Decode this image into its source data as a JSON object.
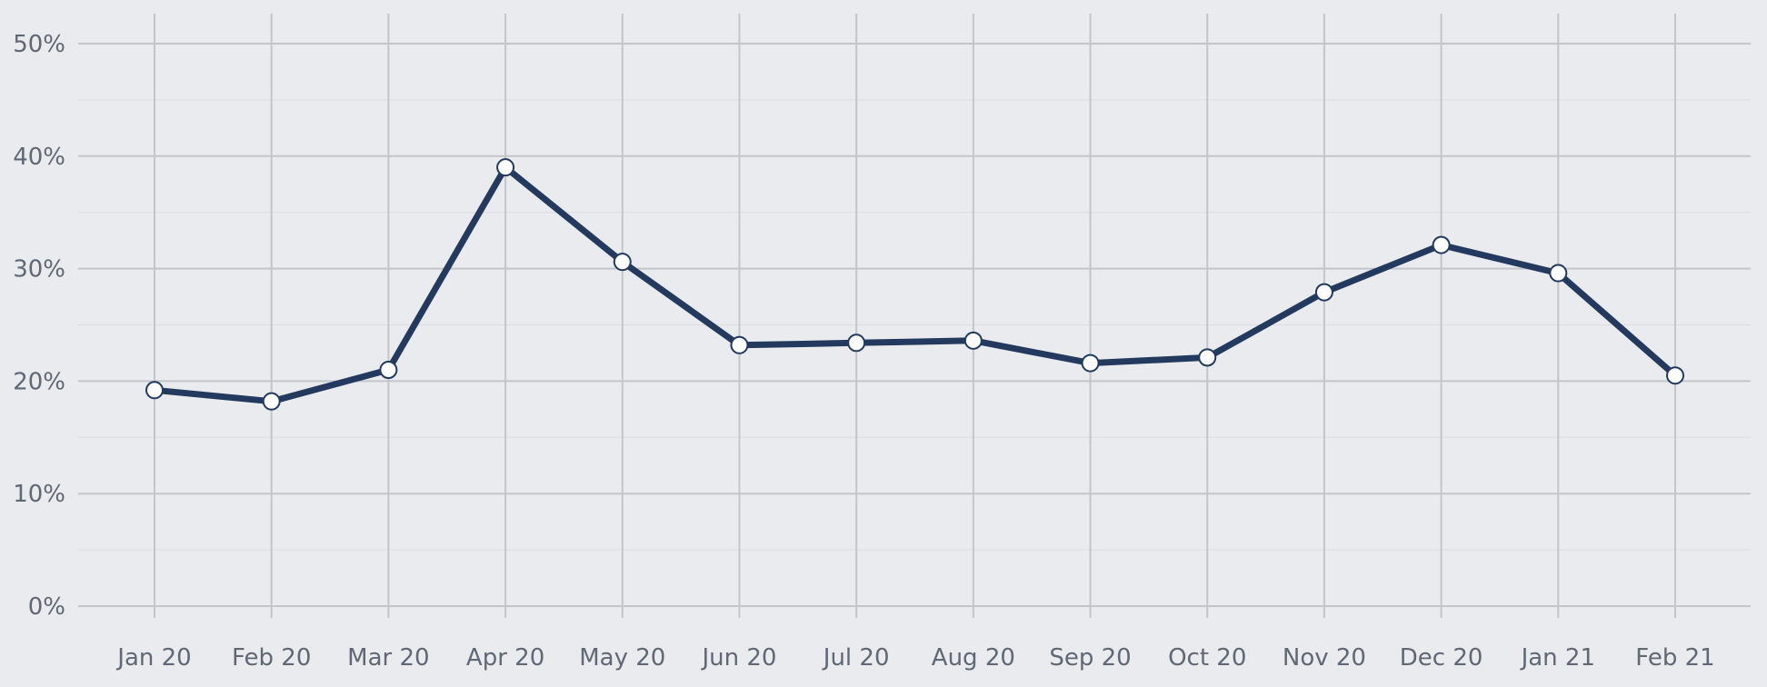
{
  "chart_data": {
    "type": "line",
    "title": "",
    "xlabel": "",
    "ylabel": "",
    "categories": [
      "Jan 20",
      "Feb 20",
      "Mar 20",
      "Apr 20",
      "May 20",
      "Jun 20",
      "Jul 20",
      "Aug 20",
      "Sep 20",
      "Oct 20",
      "Nov 20",
      "Dec 20",
      "Jan 21",
      "Feb 21"
    ],
    "series": [
      {
        "values": [
          19.2,
          18.2,
          21.0,
          39.0,
          30.6,
          23.2,
          23.4,
          23.6,
          21.6,
          22.1,
          27.9,
          32.1,
          29.6,
          20.5
        ]
      }
    ],
    "ylim": [
      0,
      50
    ],
    "yticks": [
      0,
      10,
      20,
      30,
      40,
      50
    ],
    "ytick_labels": [
      "0%",
      "10%",
      "20%",
      "30%",
      "40%",
      "50%"
    ],
    "grid": true,
    "colors": {
      "background": "#eaebee",
      "grid_major": "#c2c5ca",
      "grid_minor": "#dadce0",
      "line": "#233a5e",
      "marker_fill": "#ffffff",
      "tick_text": "#5f6874"
    }
  }
}
